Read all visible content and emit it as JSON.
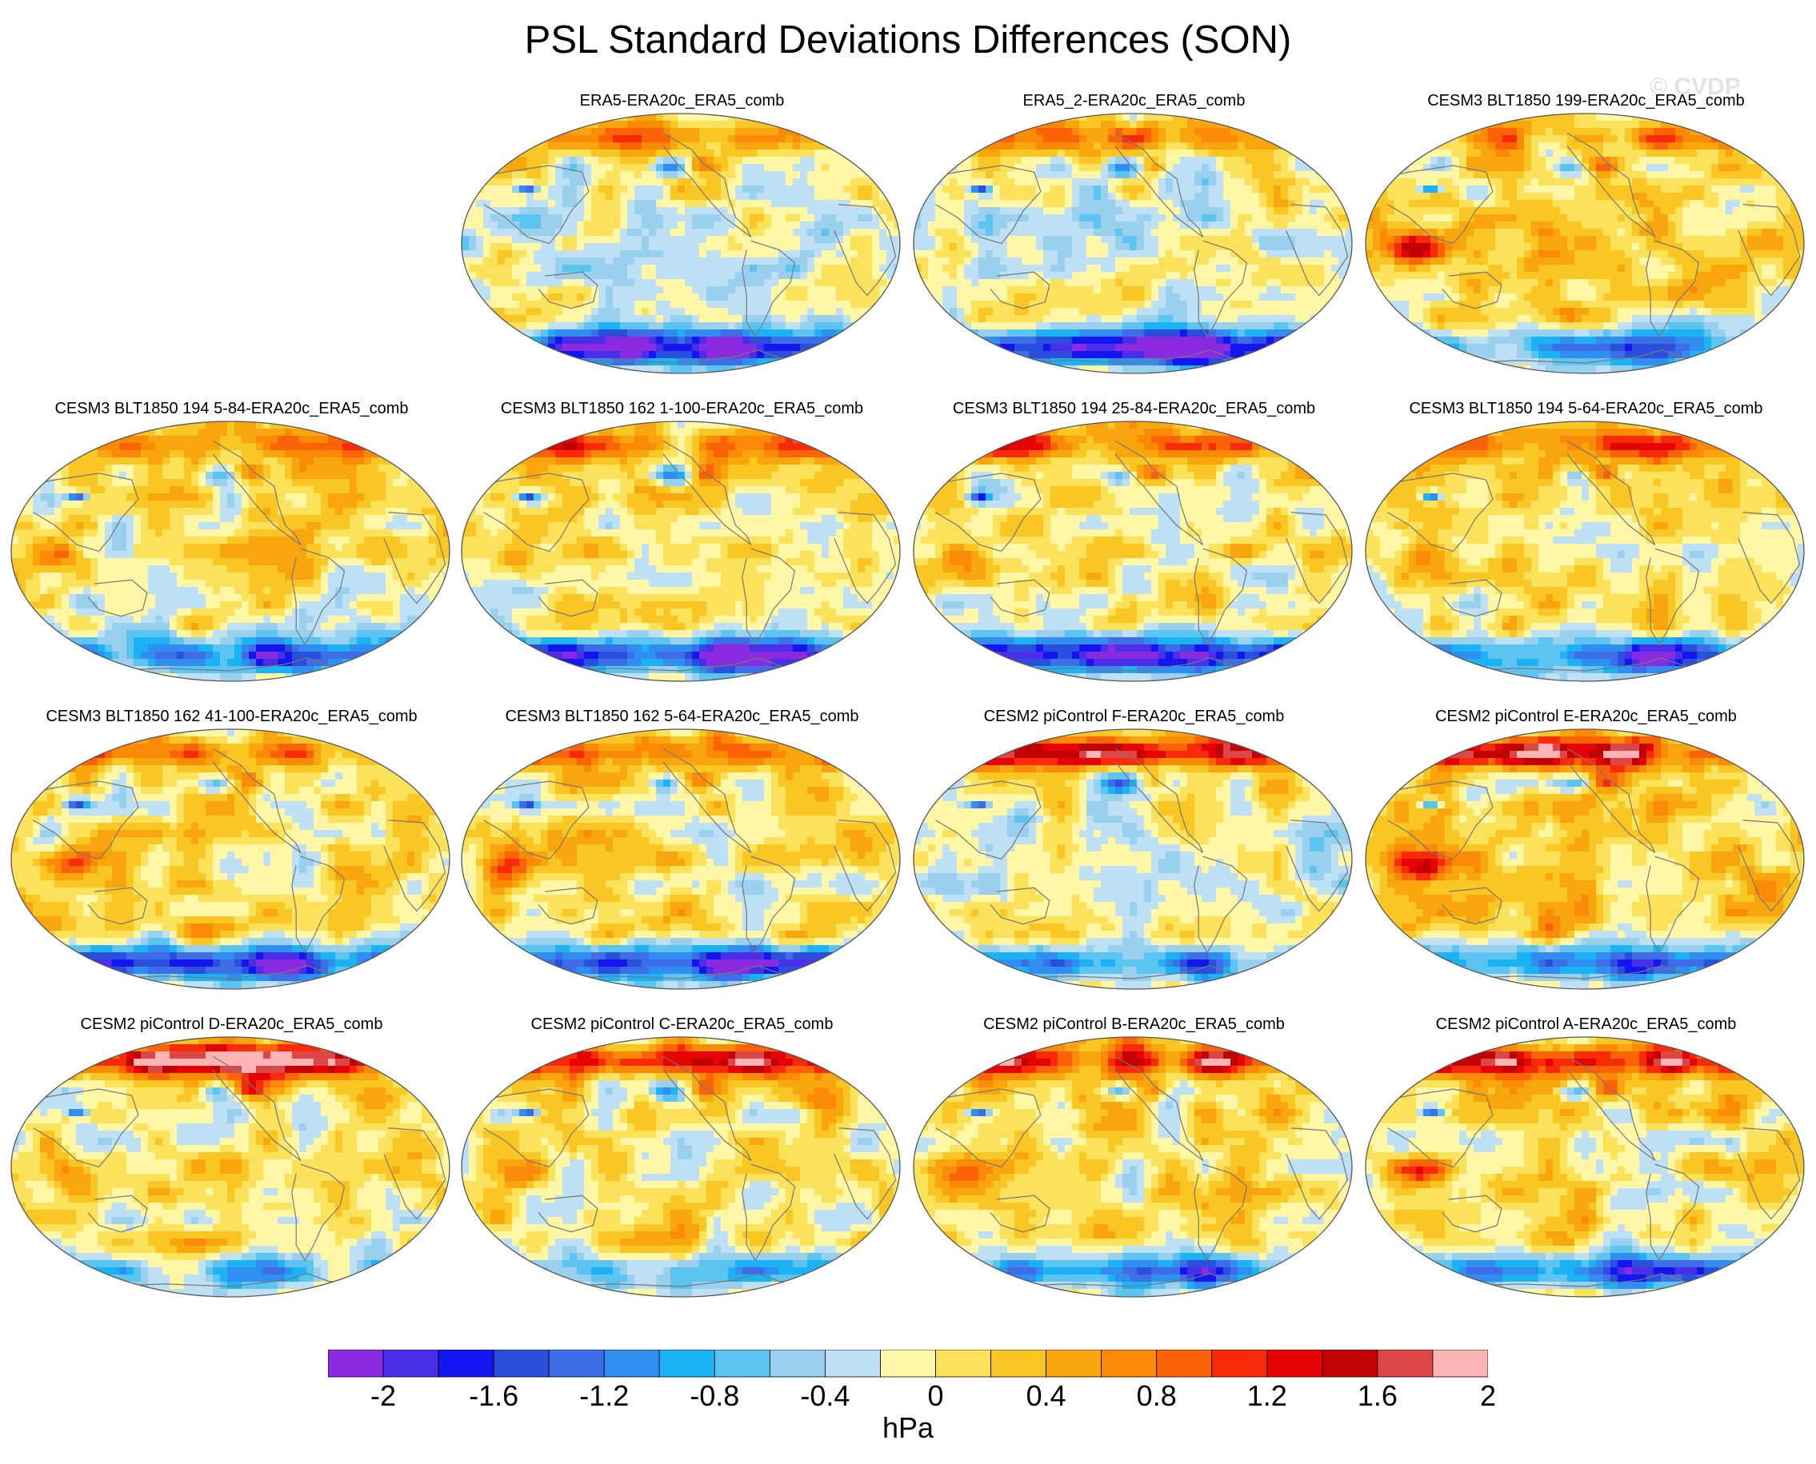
{
  "title": "PSL Standard Deviations Differences (SON)",
  "watermark": "© CVDP",
  "units": "hPa",
  "colorbar": {
    "colors": [
      "#8a2be2",
      "#4b2ee8",
      "#1515f0",
      "#2a4fdd",
      "#3d6ee8",
      "#2f8ef0",
      "#1cb3f5",
      "#5cc4f0",
      "#98d0ee",
      "#bde0f5",
      "#fff7a6",
      "#fce25a",
      "#f9c623",
      "#f9a50e",
      "#fb8a07",
      "#fb6306",
      "#f82a08",
      "#e60303",
      "#c20202",
      "#dc4646",
      "#fdb4b4"
    ],
    "tick_labels": [
      "-2",
      "-1.6",
      "-1.2",
      "-0.8",
      "-0.4",
      "0",
      "0.4",
      "0.8",
      "1.2",
      "1.6",
      "2"
    ],
    "levels": [
      -2.2,
      -2.0,
      -1.8,
      -1.6,
      -1.4,
      -1.2,
      -1.0,
      -0.8,
      -0.6,
      -0.4,
      -0.2,
      0,
      0.2,
      0.4,
      0.6,
      0.8,
      1.0,
      1.2,
      1.4,
      1.6,
      1.8,
      2.0,
      2.2
    ]
  },
  "panels": [
    {
      "title": "ERA5-ERA20c_ERA5_comb",
      "style": {
        "south_low": 1.0,
        "north_high": 0.4,
        "tropics": "blue",
        "indian_high": 0.2
      }
    },
    {
      "title": "ERA5_2-ERA20c_ERA5_comb",
      "style": {
        "south_low": 1.0,
        "north_high": 0.4,
        "tropics": "blue",
        "indian_high": 0.2
      }
    },
    {
      "title": "CESM3 BLT1850 199-ERA20c_ERA5_comb",
      "style": {
        "south_low": 0.5,
        "north_high": 0.6,
        "tropics": "yellow",
        "indian_high": 0.9
      }
    },
    {
      "title": "CESM3 BLT1850 194 5-84-ERA20c_ERA5_comb",
      "style": {
        "south_low": 0.8,
        "north_high": 0.5,
        "tropics": "mixed",
        "indian_high": 0.6
      }
    },
    {
      "title": "CESM3 BLT1850 162 1-100-ERA20c_ERA5_comb",
      "style": {
        "south_low": 0.9,
        "north_high": 0.6,
        "tropics": "mixed",
        "indian_high": 0.7
      }
    },
    {
      "title": "CESM3 BLT1850 194 25-84-ERA20c_ERA5_comb",
      "style": {
        "south_low": 0.95,
        "north_high": 0.5,
        "tropics": "mixed",
        "indian_high": 0.6
      }
    },
    {
      "title": "CESM3 BLT1850 194 5-64-ERA20c_ERA5_comb",
      "style": {
        "south_low": 0.7,
        "north_high": 0.5,
        "tropics": "mixed",
        "indian_high": 0.6
      }
    },
    {
      "title": "CESM3 BLT1850 162 41-100-ERA20c_ERA5_comb",
      "style": {
        "south_low": 0.85,
        "north_high": 0.6,
        "tropics": "mixed",
        "indian_high": 0.7
      }
    },
    {
      "title": "CESM3 BLT1850 162 5-64-ERA20c_ERA5_comb",
      "style": {
        "south_low": 0.95,
        "north_high": 0.5,
        "tropics": "mixed",
        "indian_high": 0.6
      }
    },
    {
      "title": "CESM2 piControl F-ERA20c_ERA5_comb",
      "style": {
        "south_low": 0.5,
        "north_high": 0.8,
        "tropics": "blue",
        "indian_high": 0.4
      }
    },
    {
      "title": "CESM2 piControl E-ERA20c_ERA5_comb",
      "style": {
        "south_low": 0.55,
        "north_high": 1.0,
        "tropics": "yellow",
        "indian_high": 0.8
      }
    },
    {
      "title": "CESM2 piControl D-ERA20c_ERA5_comb",
      "style": {
        "south_low": 0.35,
        "north_high": 0.9,
        "tropics": "mixed",
        "indian_high": 0.5
      }
    },
    {
      "title": "CESM2 piControl C-ERA20c_ERA5_comb",
      "style": {
        "south_low": 0.4,
        "north_high": 0.8,
        "tropics": "mixed",
        "indian_high": 0.5
      }
    },
    {
      "title": "CESM2 piControl B-ERA20c_ERA5_comb",
      "style": {
        "south_low": 0.6,
        "north_high": 0.9,
        "tropics": "mixed",
        "indian_high": 0.5
      }
    },
    {
      "title": "CESM2 piControl A-ERA20c_ERA5_comb",
      "style": {
        "south_low": 0.65,
        "north_high": 0.9,
        "tropics": "mixed",
        "indian_high": 0.6
      }
    }
  ]
}
